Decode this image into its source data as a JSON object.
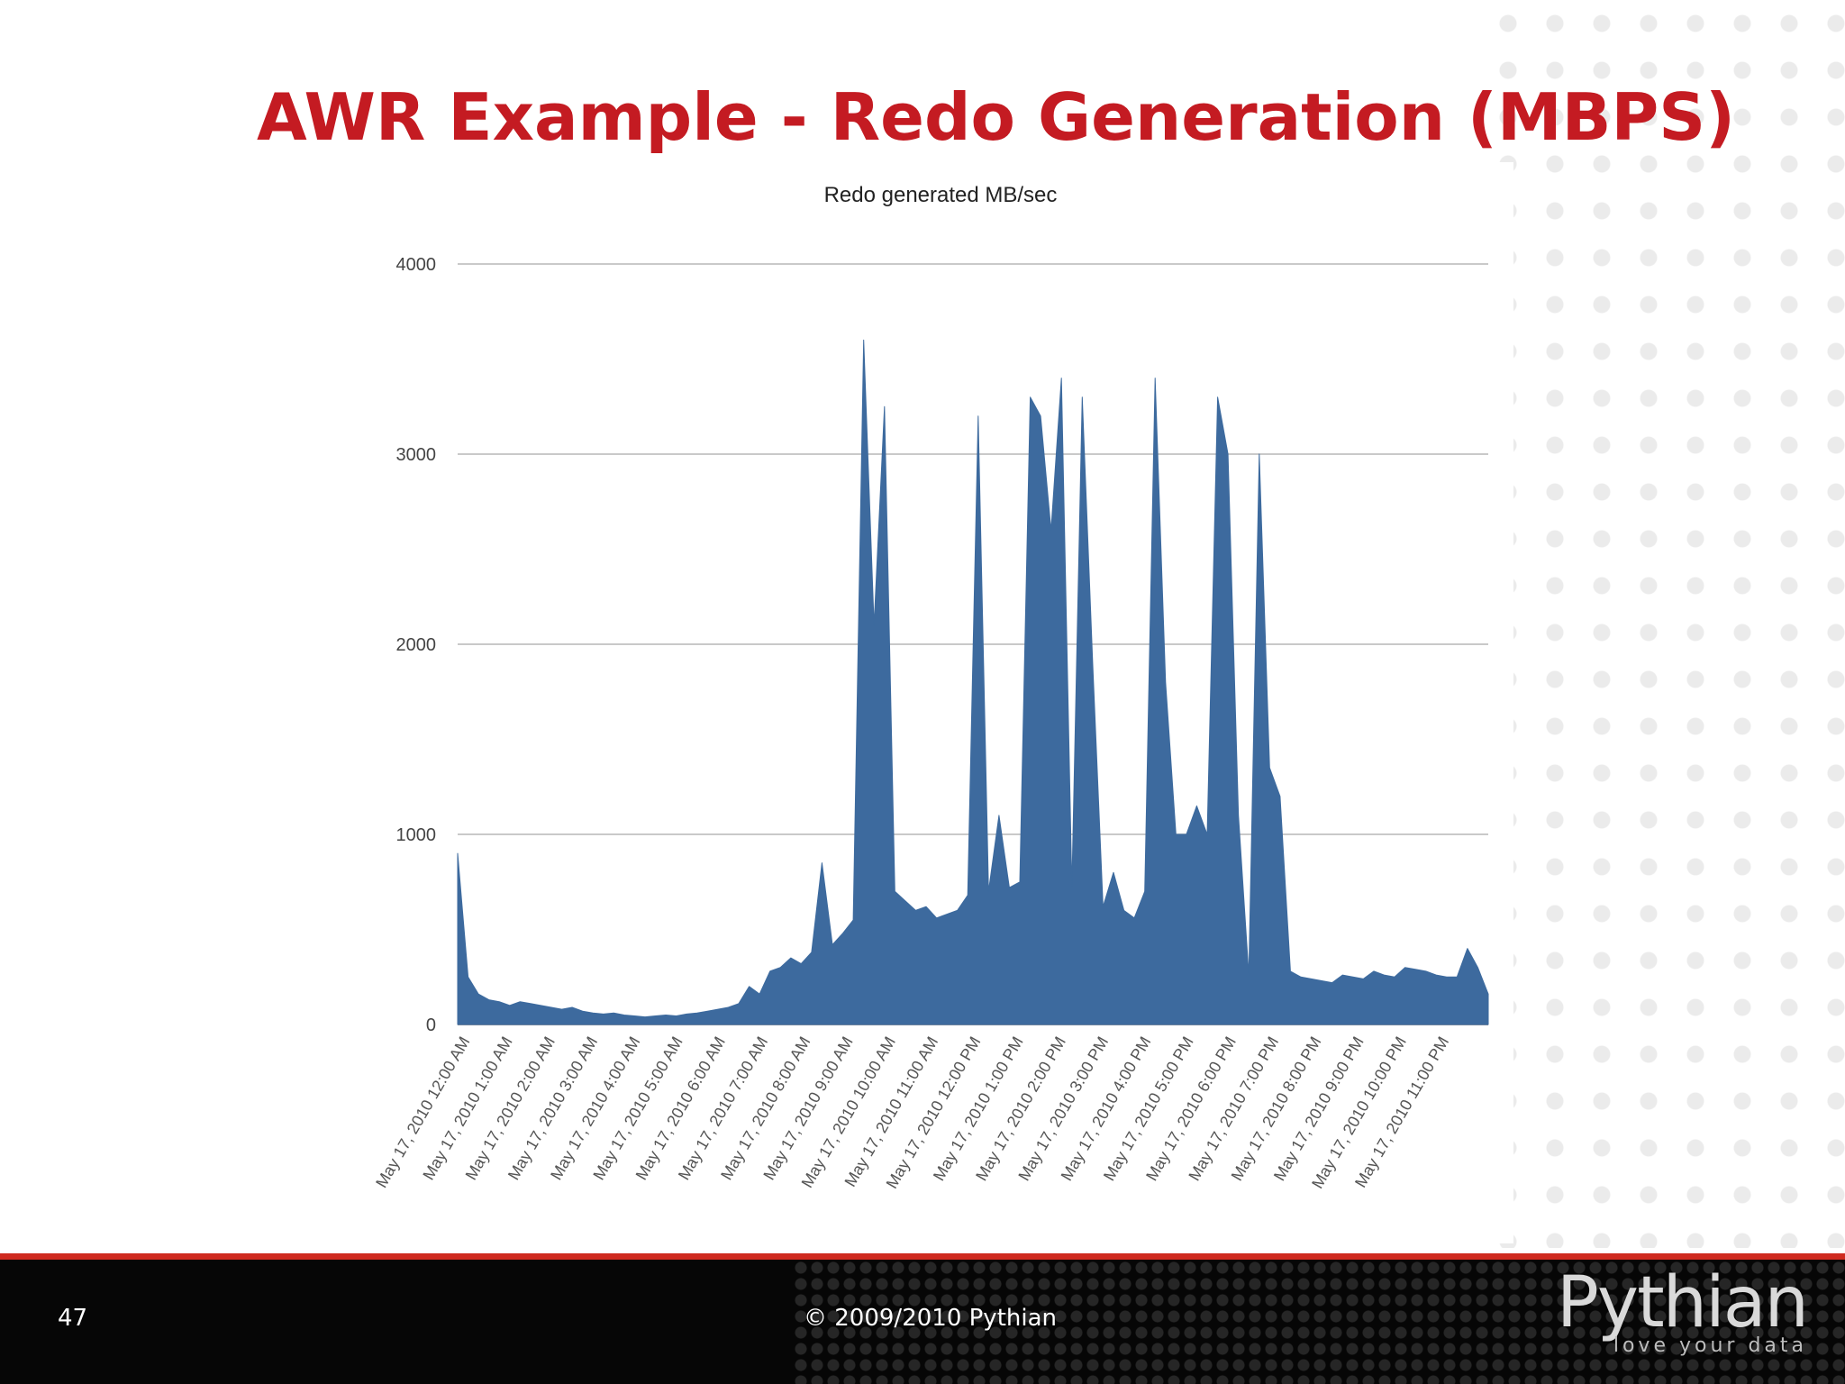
{
  "slide": {
    "title": "AWR Example - Redo Generation (MBPS)",
    "number": "47",
    "copyright": "© 2009/2010 Pythian",
    "logo_word": "Pythian",
    "logo_tagline": "love your data"
  },
  "colors": {
    "title": "#c41b22",
    "series": "#3d6a9e",
    "footer_rule": "#cf2a20"
  },
  "chart_data": {
    "type": "area",
    "title": "Redo generated MB/sec",
    "xlabel": "",
    "ylabel": "",
    "ylim": [
      0,
      4000
    ],
    "yticks": [
      0,
      1000,
      2000,
      3000,
      4000
    ],
    "grid": true,
    "x_tick_labels": [
      "May 17, 2010 12:00 AM",
      "May 17, 2010 1:00 AM",
      "May 17, 2010 2:00 AM",
      "May 17, 2010 3:00 AM",
      "May 17, 2010 4:00 AM",
      "May 17, 2010 5:00 AM",
      "May 17, 2010 6:00 AM",
      "May 17, 2010 7:00 AM",
      "May 17, 2010 8:00 AM",
      "May 17, 2010 9:00 AM",
      "May 17, 2010 10:00 AM",
      "May 17, 2010 11:00 AM",
      "May 17, 2010 12:00 PM",
      "May 17, 2010 1:00 PM",
      "May 17, 2010 2:00 PM",
      "May 17, 2010 3:00 PM",
      "May 17, 2010 4:00 PM",
      "May 17, 2010 5:00 PM",
      "May 17, 2010 6:00 PM",
      "May 17, 2010 7:00 PM",
      "May 17, 2010 8:00 PM",
      "May 17, 2010 9:00 PM",
      "May 17, 2010 10:00 PM",
      "May 17, 2010 11:00 PM"
    ],
    "series": [
      {
        "values": [
          900,
          250,
          160,
          130,
          120,
          100,
          120,
          110,
          100,
          90,
          80,
          90,
          70,
          60,
          55,
          60,
          50,
          45,
          40,
          45,
          50,
          45,
          55,
          60,
          70,
          80,
          90,
          110,
          200,
          160,
          280,
          300,
          350,
          320,
          380,
          850,
          420,
          480,
          550,
          3600,
          2100,
          3250,
          700,
          650,
          600,
          620,
          560,
          580,
          600,
          680,
          3200,
          700,
          1100,
          720,
          750,
          3300,
          3200,
          2600,
          3400,
          720,
          3300,
          1900,
          620,
          800,
          600,
          560,
          700,
          3400,
          1800,
          1000,
          1000,
          1150,
          1000,
          3300,
          3000,
          1100,
          260,
          3000,
          1350,
          1200,
          280,
          250,
          240,
          230,
          220,
          260,
          250,
          240,
          280,
          260,
          250,
          300,
          290,
          280,
          260,
          250,
          250,
          400,
          300,
          160
        ]
      }
    ]
  }
}
